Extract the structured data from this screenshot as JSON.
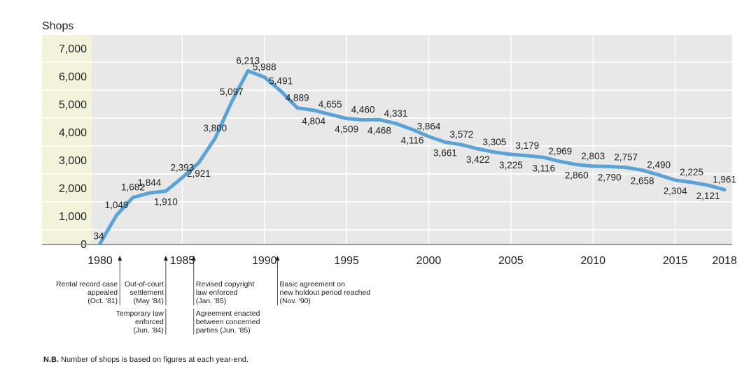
{
  "chart_data": {
    "type": "line",
    "ylabel": "Shops",
    "ylim": [
      0,
      7000
    ],
    "yticks": [
      0,
      1000,
      2000,
      3000,
      4000,
      5000,
      6000,
      7000
    ],
    "ytick_labels": [
      "0",
      "1,000",
      "2,000",
      "3,000",
      "4,000",
      "5,000",
      "6,000",
      "7,000"
    ],
    "xlim": [
      1979,
      2019.5
    ],
    "xticks": [
      1980,
      1985,
      1990,
      1995,
      2000,
      2005,
      2010,
      2015,
      2018
    ],
    "xtick_labels": [
      "1980",
      "1985",
      "1990",
      "1995",
      "2000",
      "2005",
      "2010",
      "2015",
      "2018"
    ],
    "grid": true,
    "line_color": "#5ba3d6",
    "plot_bg": "#e8e8e8",
    "axis_band_bg": "#f3f3dc",
    "series": [
      {
        "name": "Shops",
        "x": [
          1980,
          1981,
          1982,
          1983,
          1984,
          1985,
          1986,
          1987,
          1988,
          1989,
          1990,
          1991,
          1992,
          1993,
          1994,
          1995,
          1996,
          1997,
          1998,
          1999,
          2000,
          2001,
          2002,
          2003,
          2004,
          2005,
          2006,
          2007,
          2008,
          2009,
          2010,
          2011,
          2012,
          2013,
          2014,
          2015,
          2016,
          2017,
          2018
        ],
        "values": [
          34,
          1049,
          1682,
          1844,
          1910,
          2393,
          2921,
          3800,
          5097,
          6213,
          5988,
          5491,
          4889,
          4804,
          4655,
          4509,
          4460,
          4468,
          4331,
          4116,
          3864,
          3661,
          3572,
          3422,
          3305,
          3225,
          3179,
          3116,
          2969,
          2860,
          2803,
          2790,
          2757,
          2658,
          2490,
          2304,
          2225,
          2121,
          1961
        ],
        "labels": [
          "34",
          "1,049",
          "1,682",
          "1,844",
          "1,910",
          "2,393",
          "2,921",
          "3,800",
          "5,097",
          "6,213",
          "5,988",
          "5,491",
          "4,889",
          "4,804",
          "4,655",
          "4,509",
          "4,460",
          "4,468",
          "4,331",
          "4,116",
          "3,864",
          "3,661",
          "3,572",
          "3,422",
          "3,305",
          "3,225",
          "3,179",
          "3,116",
          "2,969",
          "2,860",
          "2,803",
          "2,790",
          "2,757",
          "2,658",
          "2,490",
          "2,304",
          "2,225",
          "2,121",
          "1,961"
        ],
        "label_pos": [
          "r",
          "a",
          "a",
          "a",
          "b",
          "a",
          "b",
          "a",
          "a",
          "a",
          "a",
          "a",
          "a",
          "b",
          "a",
          "b",
          "a",
          "b",
          "a",
          "b",
          "a",
          "b",
          "a",
          "b",
          "a",
          "b",
          "a",
          "b",
          "a",
          "b",
          "a",
          "b",
          "a",
          "b",
          "a",
          "b",
          "a",
          "b",
          "a"
        ]
      }
    ],
    "annotations": [
      {
        "x": 1981.2,
        "align": "right",
        "lines": [
          "Rental record case",
          "appealed",
          "(Oct. '81)"
        ]
      },
      {
        "x": 1984.0,
        "align": "right",
        "lines": [
          "Out-of-court",
          "settlement",
          "(May '84)"
        ]
      },
      {
        "x": 1984.0,
        "align": "right",
        "row": 2,
        "lines": [
          "Temporary law",
          "enforced",
          "(Jun. '84)"
        ]
      },
      {
        "x": 1985.7,
        "align": "left",
        "lines": [
          "Revised copyright",
          "law enforced",
          "(Jan. '85)"
        ]
      },
      {
        "x": 1985.7,
        "align": "left",
        "row": 2,
        "lines": [
          "Agreement enacted",
          "between concerned",
          "parties (Jun. '85)"
        ]
      },
      {
        "x": 1990.8,
        "align": "left",
        "lines": [
          "Basic agreement on",
          "new holdout period reached",
          "(Nov. '90)"
        ]
      }
    ]
  },
  "footnote": {
    "bold": "N.B.",
    "text": " Number of shops is based on figures at each year-end."
  }
}
